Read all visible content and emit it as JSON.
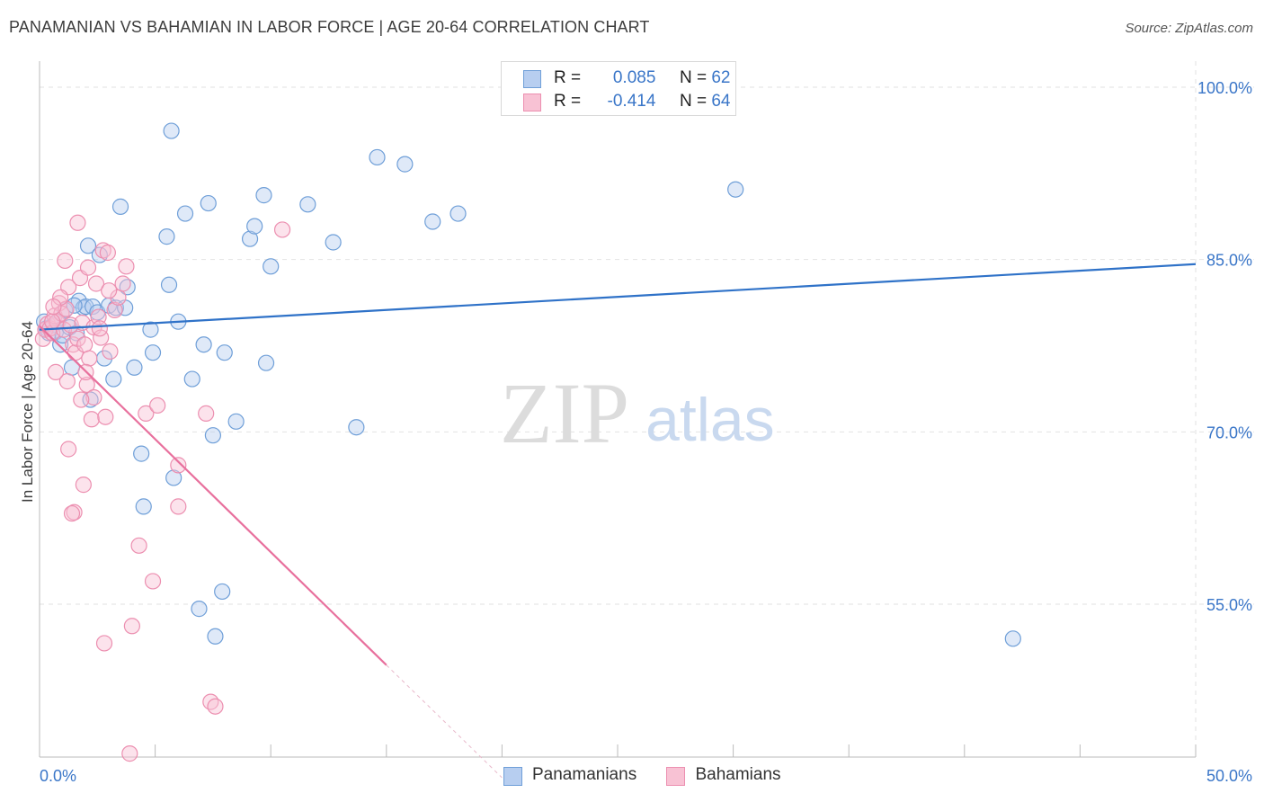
{
  "title": "PANAMANIAN VS BAHAMIAN IN LABOR FORCE | AGE 20-64 CORRELATION CHART",
  "source": "Source: ZipAtlas.com",
  "watermark": {
    "zip": "ZIP",
    "atlas": "atlas"
  },
  "legend": [
    {
      "r_label": "R =",
      "r_value": "0.085",
      "n_label": "N =",
      "n_value": "62"
    },
    {
      "r_label": "R =",
      "r_value": "-0.414",
      "n_label": "N =",
      "n_value": "64"
    }
  ],
  "bottom_legend": [
    "Panamanians",
    "Bahamians"
  ],
  "colors": {
    "blue_fill": "#b7cef0",
    "blue_stroke": "#6f9fd8",
    "blue_line": "#2f72c8",
    "pink_fill": "#f8c2d4",
    "pink_stroke": "#ec8fb0",
    "pink_line": "#e8709d",
    "axis_text": "#3a76c8",
    "grid": "#e2e2e2"
  },
  "chart_data": {
    "type": "scatter",
    "title": "PANAMANIAN VS BAHAMIAN IN LABOR FORCE | AGE 20-64 CORRELATION CHART",
    "xlabel": "",
    "ylabel": "In Labor Force | Age 20-64",
    "xlim": [
      0,
      50
    ],
    "ylim": [
      40,
      101.5
    ],
    "x_tick_labels": [
      "0.0%",
      "50.0%"
    ],
    "y_ticks": [
      55,
      70,
      85,
      100
    ],
    "y_tick_labels": [
      "55.0%",
      "70.0%",
      "85.0%",
      "100.0%"
    ],
    "series": [
      {
        "name": "Panamanians",
        "R": 0.085,
        "N": 62,
        "trend": {
          "x": [
            0,
            50
          ],
          "y": [
            78.9,
            84.6
          ]
        },
        "points": [
          [
            0.2,
            79.6
          ],
          [
            0.3,
            79.0
          ],
          [
            0.4,
            78.6
          ],
          [
            0.6,
            79.3
          ],
          [
            0.7,
            78.7
          ],
          [
            0.8,
            79.6
          ],
          [
            0.9,
            77.6
          ],
          [
            1.0,
            78.4
          ],
          [
            1.1,
            80.6
          ],
          [
            1.3,
            79.1
          ],
          [
            1.4,
            75.6
          ],
          [
            1.6,
            78.6
          ],
          [
            1.7,
            81.4
          ],
          [
            1.9,
            80.8
          ],
          [
            2.0,
            80.9
          ],
          [
            2.1,
            86.2
          ],
          [
            2.3,
            80.9
          ],
          [
            2.5,
            80.4
          ],
          [
            2.6,
            85.4
          ],
          [
            2.8,
            76.4
          ],
          [
            3.0,
            81.0
          ],
          [
            3.3,
            80.8
          ],
          [
            3.5,
            89.6
          ],
          [
            3.7,
            80.8
          ],
          [
            3.8,
            82.6
          ],
          [
            4.1,
            75.6
          ],
          [
            4.4,
            68.1
          ],
          [
            4.5,
            63.5
          ],
          [
            4.8,
            78.9
          ],
          [
            4.9,
            76.9
          ],
          [
            5.5,
            87.0
          ],
          [
            5.6,
            82.8
          ],
          [
            5.7,
            96.2
          ],
          [
            5.8,
            66.0
          ],
          [
            6.0,
            79.6
          ],
          [
            6.3,
            89.0
          ],
          [
            6.6,
            74.6
          ],
          [
            6.9,
            54.6
          ],
          [
            7.1,
            77.6
          ],
          [
            7.3,
            89.9
          ],
          [
            7.5,
            69.7
          ],
          [
            7.6,
            52.2
          ],
          [
            7.9,
            56.1
          ],
          [
            8.0,
            76.9
          ],
          [
            8.5,
            70.9
          ],
          [
            9.1,
            86.8
          ],
          [
            9.3,
            87.9
          ],
          [
            9.7,
            90.6
          ],
          [
            9.8,
            76.0
          ],
          [
            10.0,
            84.4
          ],
          [
            11.6,
            89.8
          ],
          [
            12.7,
            86.5
          ],
          [
            13.7,
            70.4
          ],
          [
            14.6,
            93.9
          ],
          [
            15.8,
            93.3
          ],
          [
            17.0,
            88.3
          ],
          [
            18.1,
            89.0
          ],
          [
            30.1,
            91.1
          ],
          [
            42.1,
            52.0
          ],
          [
            2.2,
            72.8
          ],
          [
            1.5,
            81.0
          ],
          [
            3.2,
            74.6
          ]
        ]
      },
      {
        "name": "Bahamians",
        "R": -0.414,
        "N": 64,
        "trend": {
          "x": [
            0,
            15
          ],
          "y": [
            79.2,
            49.7
          ]
        },
        "trend_dashed": {
          "x": [
            15,
            20
          ],
          "y": [
            49.7,
            39.9
          ]
        },
        "points": [
          [
            0.15,
            78.1
          ],
          [
            0.25,
            78.9
          ],
          [
            0.35,
            79.4
          ],
          [
            0.45,
            79.0
          ],
          [
            0.55,
            78.6
          ],
          [
            0.65,
            80.1
          ],
          [
            0.75,
            79.6
          ],
          [
            0.85,
            81.2
          ],
          [
            0.95,
            80.3
          ],
          [
            1.05,
            78.9
          ],
          [
            1.15,
            80.7
          ],
          [
            1.25,
            82.6
          ],
          [
            1.35,
            79.3
          ],
          [
            1.45,
            77.6
          ],
          [
            1.55,
            76.9
          ],
          [
            1.65,
            78.1
          ],
          [
            1.75,
            83.4
          ],
          [
            1.85,
            79.5
          ],
          [
            1.95,
            77.6
          ],
          [
            2.05,
            74.1
          ],
          [
            2.15,
            76.4
          ],
          [
            2.25,
            71.1
          ],
          [
            2.35,
            79.1
          ],
          [
            2.45,
            82.9
          ],
          [
            2.55,
            80.0
          ],
          [
            2.65,
            78.2
          ],
          [
            2.75,
            85.8
          ],
          [
            2.85,
            71.3
          ],
          [
            2.95,
            85.6
          ],
          [
            3.05,
            77.0
          ],
          [
            3.25,
            80.6
          ],
          [
            3.4,
            81.7
          ],
          [
            3.6,
            82.9
          ],
          [
            3.75,
            84.4
          ],
          [
            4.0,
            53.1
          ],
          [
            4.3,
            60.1
          ],
          [
            4.6,
            71.6
          ],
          [
            4.9,
            57.0
          ],
          [
            5.1,
            72.3
          ],
          [
            6.0,
            67.1
          ],
          [
            7.2,
            71.6
          ],
          [
            7.4,
            46.5
          ],
          [
            7.6,
            46.1
          ],
          [
            10.5,
            87.6
          ],
          [
            1.65,
            88.2
          ],
          [
            2.1,
            84.3
          ],
          [
            1.1,
            84.9
          ],
          [
            2.35,
            73.0
          ],
          [
            1.25,
            68.5
          ],
          [
            1.5,
            63.0
          ],
          [
            1.9,
            65.4
          ],
          [
            2.8,
            51.6
          ],
          [
            3.9,
            42.0
          ],
          [
            6.0,
            63.5
          ],
          [
            0.9,
            81.7
          ],
          [
            1.2,
            74.4
          ],
          [
            0.7,
            75.2
          ],
          [
            2.0,
            75.2
          ],
          [
            0.55,
            79.6
          ],
          [
            1.8,
            72.8
          ],
          [
            3.0,
            82.3
          ],
          [
            1.4,
            62.9
          ],
          [
            0.6,
            80.9
          ],
          [
            2.6,
            79.0
          ]
        ]
      }
    ]
  }
}
